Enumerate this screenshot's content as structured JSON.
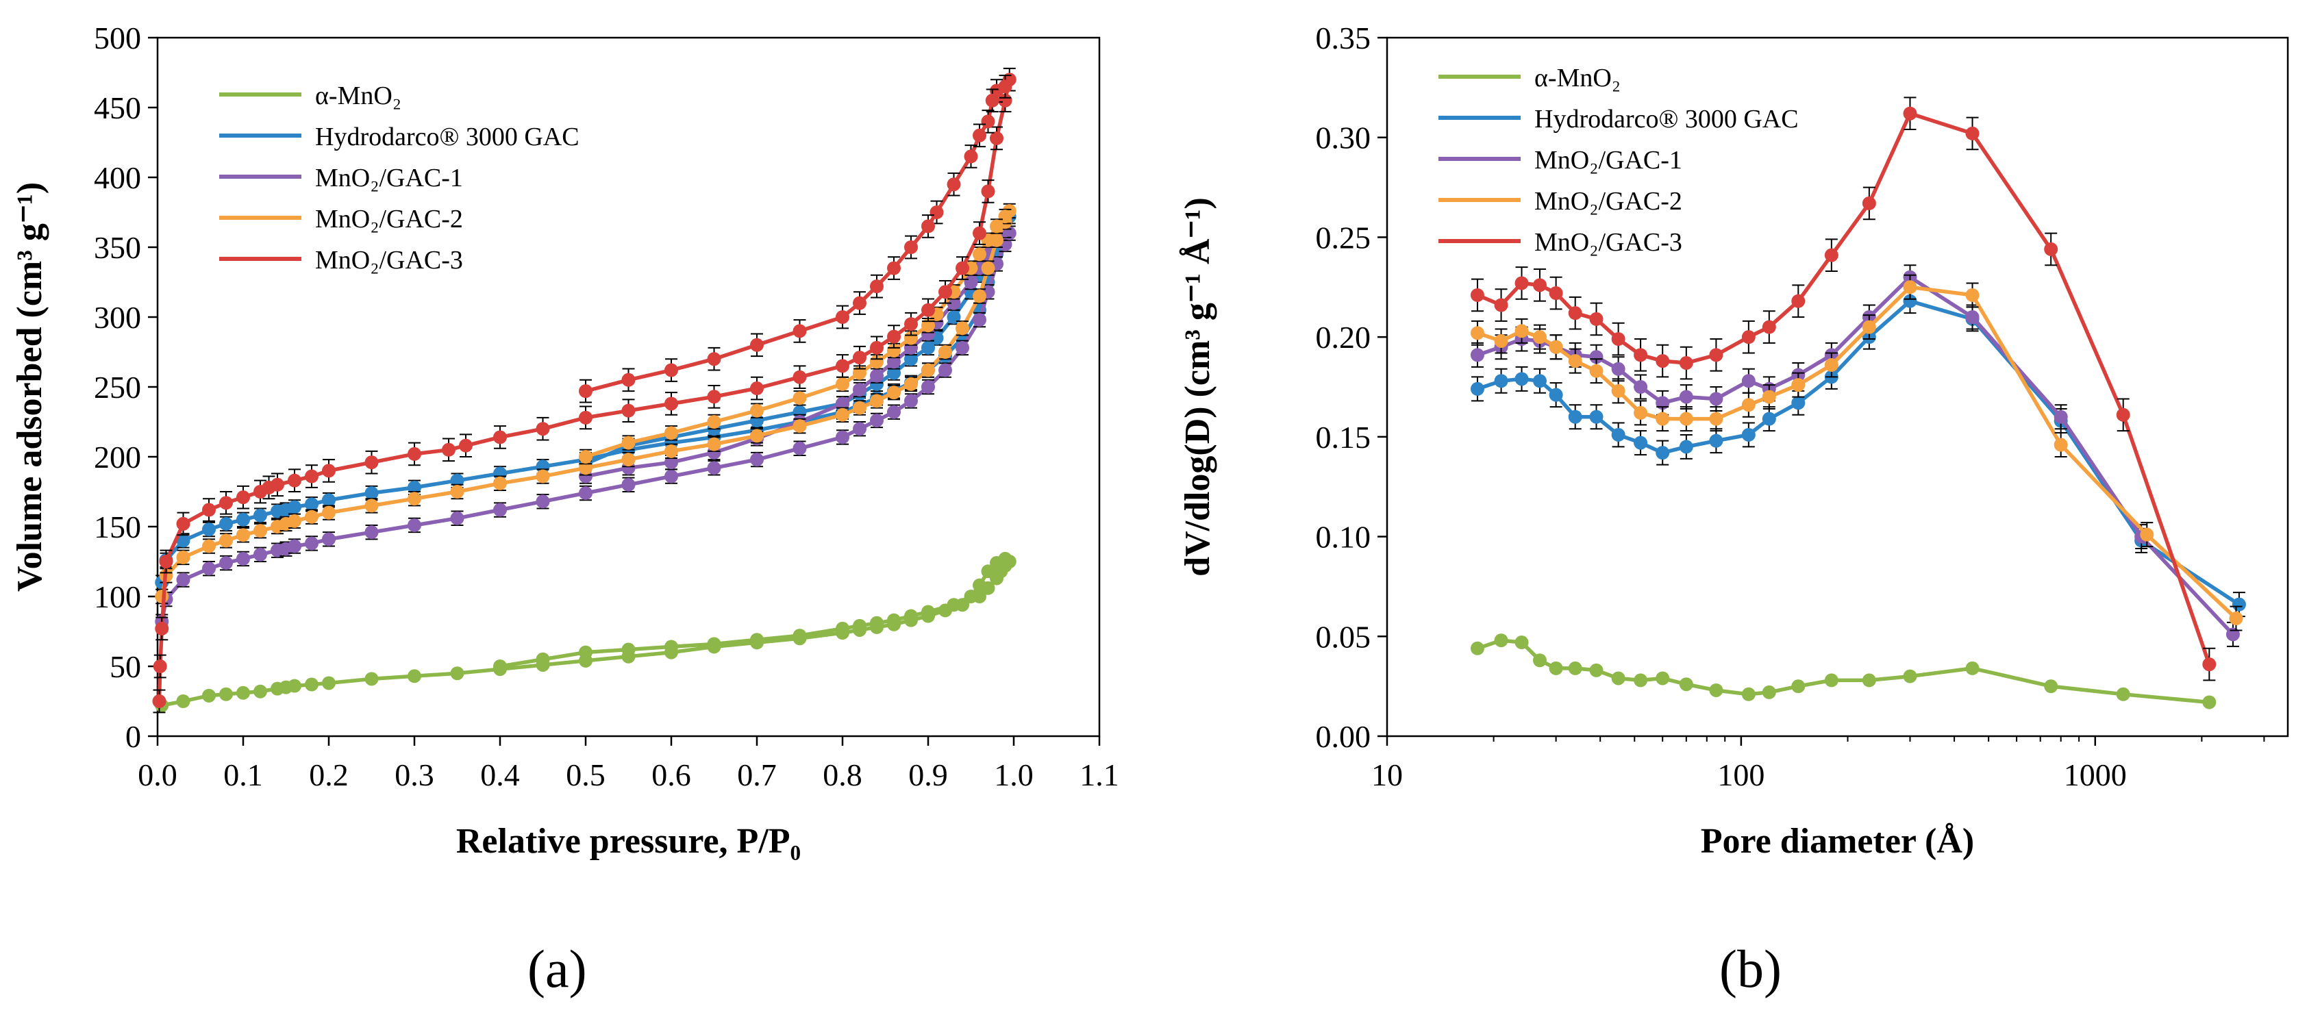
{
  "colors": {
    "a_mno2": "#8db849",
    "gac": "#2d84c6",
    "mno2_gac_1": "#8a60b3",
    "mno2_gac_2": "#f5a140",
    "mno2_gac_3": "#d9403b"
  },
  "panel_labels": {
    "a": "(a)",
    "b": "(b)"
  },
  "chart_data": [
    {
      "id": "a",
      "type": "scatter",
      "xlabel": "Relative pressure, P/P₀",
      "ylabel": "Volume adsorbed (cm³ g⁻¹)",
      "xlim": [
        0,
        1.1
      ],
      "ylim": [
        0,
        500
      ],
      "xticks": [
        0.0,
        0.1,
        0.2,
        0.3,
        0.4,
        0.5,
        0.6,
        0.7,
        0.8,
        0.9,
        1.0,
        1.1
      ],
      "xtick_labels": [
        "0.0",
        "0.1",
        "0.2",
        "0.3",
        "0.4",
        "0.5",
        "0.6",
        "0.7",
        "0.8",
        "0.9",
        "1.0",
        "1.1"
      ],
      "yticks": [
        0,
        50,
        100,
        150,
        200,
        250,
        300,
        350,
        400,
        450,
        500
      ],
      "ytick_labels": [
        "0",
        "50",
        "100",
        "150",
        "200",
        "250",
        "300",
        "350",
        "400",
        "450",
        "500"
      ],
      "legend_position": "top-left",
      "series": [
        {
          "name": "α-MnO₂",
          "color_key": "a_mno2",
          "error": 0,
          "x": [
            0.005,
            0.03,
            0.06,
            0.08,
            0.1,
            0.12,
            0.14,
            0.15,
            0.16,
            0.18,
            0.2,
            0.25,
            0.3,
            0.35,
            0.4,
            0.45,
            0.5,
            0.55,
            0.6,
            0.65,
            0.7,
            0.75,
            0.8,
            0.82,
            0.84,
            0.86,
            0.88,
            0.9,
            0.92,
            0.94,
            0.96,
            0.97,
            0.98,
            0.985,
            0.99,
            0.995,
            0.99,
            0.98,
            0.97,
            0.96,
            0.95,
            0.93,
            0.9,
            0.88,
            0.86,
            0.84,
            0.82,
            0.8,
            0.75,
            0.7,
            0.65,
            0.6,
            0.55,
            0.5,
            0.45,
            0.4
          ],
          "y": [
            22,
            25,
            29,
            30,
            31,
            32,
            34,
            35,
            36,
            37,
            38,
            41,
            43,
            45,
            48,
            51,
            54,
            57,
            60,
            64,
            67,
            70,
            74,
            76,
            78,
            80,
            83,
            86,
            90,
            94,
            100,
            106,
            113,
            118,
            122,
            125,
            127,
            124,
            118,
            108,
            100,
            94,
            89,
            86,
            83,
            81,
            79,
            77,
            72,
            69,
            66,
            64,
            62,
            60,
            55,
            50
          ]
        },
        {
          "name": "Hydrodarco® 3000 GAC",
          "color_key": "gac",
          "error": 5,
          "x": [
            0.005,
            0.01,
            0.03,
            0.06,
            0.08,
            0.1,
            0.12,
            0.14,
            0.15,
            0.16,
            0.18,
            0.2,
            0.25,
            0.3,
            0.35,
            0.4,
            0.45,
            0.5,
            0.55,
            0.6,
            0.65,
            0.7,
            0.75,
            0.8,
            0.82,
            0.84,
            0.86,
            0.88,
            0.9,
            0.92,
            0.94,
            0.96,
            0.97,
            0.98,
            0.99,
            0.995,
            0.99,
            0.98,
            0.97,
            0.96,
            0.95,
            0.93,
            0.91,
            0.9,
            0.88,
            0.86,
            0.84,
            0.82,
            0.8,
            0.75,
            0.7,
            0.65,
            0.6,
            0.55,
            0.5
          ],
          "y": [
            110,
            126,
            140,
            148,
            152,
            155,
            158,
            161,
            162,
            164,
            166,
            169,
            174,
            178,
            183,
            188,
            193,
            198,
            205,
            210,
            214,
            219,
            225,
            232,
            237,
            242,
            247,
            253,
            262,
            272,
            285,
            305,
            325,
            345,
            362,
            372,
            368,
            358,
            345,
            330,
            318,
            300,
            285,
            278,
            270,
            260,
            252,
            245,
            238,
            232,
            226,
            220,
            214,
            208,
            195
          ]
        },
        {
          "name": "MnO₂/GAC-1",
          "color_key": "mno2_gac_1",
          "error": 5,
          "x": [
            0.005,
            0.01,
            0.03,
            0.06,
            0.08,
            0.1,
            0.12,
            0.14,
            0.15,
            0.16,
            0.18,
            0.2,
            0.25,
            0.3,
            0.35,
            0.4,
            0.45,
            0.5,
            0.55,
            0.6,
            0.65,
            0.7,
            0.75,
            0.8,
            0.82,
            0.84,
            0.86,
            0.88,
            0.9,
            0.92,
            0.94,
            0.96,
            0.97,
            0.98,
            0.99,
            0.995,
            0.99,
            0.98,
            0.97,
            0.96,
            0.95,
            0.93,
            0.91,
            0.9,
            0.88,
            0.86,
            0.84,
            0.82,
            0.8,
            0.75,
            0.7,
            0.65,
            0.6,
            0.55,
            0.5
          ],
          "y": [
            82,
            98,
            112,
            120,
            124,
            127,
            130,
            133,
            134,
            136,
            138,
            141,
            146,
            151,
            156,
            162,
            168,
            174,
            180,
            186,
            192,
            198,
            206,
            214,
            220,
            226,
            232,
            240,
            250,
            262,
            278,
            298,
            318,
            338,
            352,
            360,
            362,
            355,
            345,
            335,
            325,
            310,
            296,
            288,
            278,
            268,
            258,
            248,
            238,
            225,
            213,
            203,
            196,
            192,
            186
          ]
        },
        {
          "name": "MnO₂/GAC-2",
          "color_key": "mno2_gac_2",
          "error": 5,
          "x": [
            0.005,
            0.01,
            0.03,
            0.06,
            0.08,
            0.1,
            0.12,
            0.14,
            0.15,
            0.16,
            0.18,
            0.2,
            0.25,
            0.3,
            0.35,
            0.4,
            0.45,
            0.5,
            0.55,
            0.6,
            0.65,
            0.7,
            0.75,
            0.8,
            0.82,
            0.84,
            0.86,
            0.88,
            0.9,
            0.92,
            0.94,
            0.96,
            0.97,
            0.98,
            0.99,
            0.995,
            0.99,
            0.98,
            0.97,
            0.96,
            0.95,
            0.93,
            0.91,
            0.9,
            0.88,
            0.86,
            0.84,
            0.82,
            0.8,
            0.75,
            0.7,
            0.65,
            0.6,
            0.55,
            0.5
          ],
          "y": [
            100,
            115,
            128,
            136,
            140,
            144,
            147,
            150,
            152,
            154,
            157,
            160,
            165,
            170,
            175,
            181,
            186,
            192,
            198,
            204,
            209,
            215,
            222,
            230,
            235,
            240,
            246,
            252,
            262,
            275,
            292,
            315,
            335,
            355,
            368,
            376,
            372,
            365,
            355,
            345,
            335,
            318,
            302,
            294,
            285,
            276,
            268,
            260,
            252,
            242,
            233,
            225,
            217,
            210,
            200
          ]
        },
        {
          "name": "MnO₂/GAC-3",
          "color_key": "mno2_gac_3",
          "error": 8,
          "x": [
            0.002,
            0.003,
            0.005,
            0.01,
            0.03,
            0.06,
            0.08,
            0.1,
            0.12,
            0.13,
            0.14,
            0.16,
            0.18,
            0.2,
            0.25,
            0.3,
            0.34,
            0.36,
            0.4,
            0.45,
            0.5,
            0.55,
            0.6,
            0.65,
            0.7,
            0.75,
            0.8,
            0.82,
            0.84,
            0.86,
            0.88,
            0.9,
            0.92,
            0.94,
            0.96,
            0.97,
            0.98,
            0.99,
            0.995,
            0.99,
            0.98,
            0.975,
            0.97,
            0.96,
            0.95,
            0.93,
            0.91,
            0.9,
            0.88,
            0.86,
            0.84,
            0.82,
            0.8,
            0.75,
            0.7,
            0.65,
            0.6,
            0.55,
            0.5
          ],
          "y": [
            25,
            50,
            77,
            125,
            152,
            162,
            167,
            171,
            175,
            178,
            180,
            183,
            186,
            190,
            196,
            202,
            205,
            208,
            214,
            220,
            228,
            233,
            238,
            243,
            249,
            257,
            265,
            271,
            278,
            286,
            295,
            305,
            318,
            335,
            360,
            390,
            428,
            455,
            470,
            465,
            462,
            455,
            440,
            430,
            415,
            395,
            375,
            365,
            350,
            335,
            322,
            310,
            300,
            290,
            280,
            270,
            262,
            255,
            247
          ]
        }
      ]
    },
    {
      "id": "b",
      "type": "line",
      "xscale": "log",
      "xlabel": "Pore diameter (Å)",
      "ylabel": "dV/dlog(D) (cm³ g⁻¹ Å⁻¹)",
      "xlim": [
        10,
        3500
      ],
      "ylim": [
        0,
        0.35
      ],
      "xticks": [
        10,
        100,
        1000
      ],
      "xtick_labels": [
        "10",
        "100",
        "1000"
      ],
      "yticks": [
        0,
        0.05,
        0.1,
        0.15,
        0.2,
        0.25,
        0.3,
        0.35
      ],
      "ytick_labels": [
        "0.00",
        "0.05",
        "0.10",
        "0.15",
        "0.20",
        "0.25",
        "0.30",
        "0.35"
      ],
      "legend_position": "top-left",
      "series": [
        {
          "name": "α-MnO₂",
          "color_key": "a_mno2",
          "error": 0,
          "x": [
            18,
            21,
            24,
            27,
            30,
            34,
            39,
            45,
            52,
            60,
            70,
            85,
            105,
            120,
            145,
            180,
            230,
            300,
            450,
            750,
            1200,
            2100
          ],
          "y": [
            0.044,
            0.048,
            0.047,
            0.038,
            0.034,
            0.034,
            0.033,
            0.029,
            0.028,
            0.029,
            0.026,
            0.023,
            0.021,
            0.022,
            0.025,
            0.028,
            0.028,
            0.03,
            0.034,
            0.025,
            0.021,
            0.017
          ]
        },
        {
          "name": "Hydrodarco® 3000 GAC",
          "color_key": "gac",
          "error": 0.006,
          "x": [
            18,
            21,
            24,
            27,
            30,
            34,
            39,
            45,
            52,
            60,
            70,
            85,
            105,
            120,
            145,
            180,
            230,
            300,
            450,
            800,
            1350,
            2550
          ],
          "y": [
            0.174,
            0.178,
            0.179,
            0.178,
            0.171,
            0.16,
            0.16,
            0.151,
            0.147,
            0.142,
            0.145,
            0.148,
            0.151,
            0.159,
            0.167,
            0.18,
            0.2,
            0.218,
            0.209,
            0.158,
            0.098,
            0.066
          ]
        },
        {
          "name": "MnO₂/GAC-1",
          "color_key": "mno2_gac_1",
          "error": 0.006,
          "x": [
            18,
            21,
            24,
            27,
            30,
            34,
            39,
            45,
            52,
            60,
            70,
            85,
            105,
            120,
            145,
            180,
            230,
            300,
            450,
            800,
            1350,
            2450
          ],
          "y": [
            0.191,
            0.195,
            0.199,
            0.198,
            0.195,
            0.191,
            0.19,
            0.184,
            0.175,
            0.167,
            0.17,
            0.169,
            0.178,
            0.174,
            0.181,
            0.191,
            0.21,
            0.23,
            0.21,
            0.16,
            0.1,
            0.051
          ]
        },
        {
          "name": "MnO₂/GAC-2",
          "color_key": "mno2_gac_2",
          "error": 0.006,
          "x": [
            18,
            21,
            24,
            27,
            30,
            34,
            39,
            45,
            52,
            60,
            70,
            85,
            105,
            120,
            145,
            180,
            230,
            300,
            450,
            800,
            1400,
            2500
          ],
          "y": [
            0.202,
            0.198,
            0.203,
            0.2,
            0.195,
            0.188,
            0.183,
            0.173,
            0.162,
            0.159,
            0.159,
            0.159,
            0.166,
            0.17,
            0.176,
            0.186,
            0.205,
            0.225,
            0.221,
            0.146,
            0.101,
            0.059
          ]
        },
        {
          "name": "MnO₂/GAC-3",
          "color_key": "mno2_gac_3",
          "error": 0.008,
          "x": [
            18,
            21,
            24,
            27,
            30,
            34,
            39,
            45,
            52,
            60,
            70,
            85,
            105,
            120,
            145,
            180,
            230,
            300,
            450,
            750,
            1200,
            2100
          ],
          "y": [
            0.221,
            0.216,
            0.227,
            0.226,
            0.222,
            0.212,
            0.209,
            0.199,
            0.191,
            0.188,
            0.187,
            0.191,
            0.2,
            0.205,
            0.218,
            0.241,
            0.267,
            0.312,
            0.302,
            0.244,
            0.161,
            0.036
          ]
        }
      ]
    }
  ]
}
